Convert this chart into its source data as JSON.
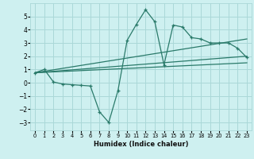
{
  "xlabel": "Humidex (Indice chaleur)",
  "xlim": [
    -0.5,
    23.5
  ],
  "ylim": [
    -3.6,
    6.0
  ],
  "yticks": [
    -3,
    -2,
    -1,
    0,
    1,
    2,
    3,
    4,
    5
  ],
  "xticks": [
    0,
    1,
    2,
    3,
    4,
    5,
    6,
    7,
    8,
    9,
    10,
    11,
    12,
    13,
    14,
    15,
    16,
    17,
    18,
    19,
    20,
    21,
    22,
    23
  ],
  "bg_color": "#cef0f0",
  "grid_color": "#aad8d8",
  "line_color": "#2a7a6a",
  "main_x": [
    0,
    1,
    2,
    3,
    4,
    5,
    6,
    7,
    8,
    9,
    10,
    11,
    12,
    13,
    14,
    15,
    16,
    17,
    18,
    19,
    20,
    21,
    22,
    23
  ],
  "main_y": [
    0.75,
    1.0,
    0.05,
    -0.1,
    -0.15,
    -0.2,
    -0.25,
    -2.2,
    -3.0,
    -0.6,
    3.2,
    4.4,
    5.5,
    4.6,
    1.35,
    4.35,
    4.2,
    3.4,
    3.3,
    3.0,
    3.0,
    3.0,
    2.6,
    1.9
  ],
  "line1_x": [
    0,
    23
  ],
  "line1_y": [
    0.75,
    2.0
  ],
  "line2_x": [
    0,
    23
  ],
  "line2_y": [
    0.75,
    3.3
  ],
  "line3_x": [
    0,
    23
  ],
  "line3_y": [
    0.75,
    1.5
  ]
}
